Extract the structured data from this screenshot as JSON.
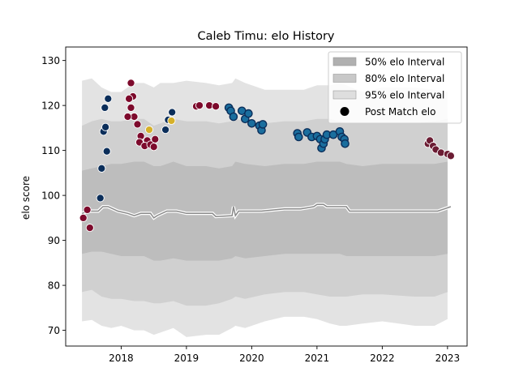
{
  "chart_data": {
    "type": "scatter",
    "title": "Caleb Timu: elo History",
    "xlabel": "",
    "ylabel": "elo score",
    "xlim": [
      2017.15,
      2023.3
    ],
    "ylim": [
      66.5,
      133
    ],
    "x_ticks": [
      2018,
      2019,
      2020,
      2021,
      2022,
      2023
    ],
    "y_ticks": [
      70,
      80,
      90,
      100,
      110,
      120,
      130
    ],
    "grid": false,
    "legend_position": "top-right",
    "legend": [
      {
        "label": "50% elo Interval",
        "color": "#b0b0b0",
        "kind": "patch"
      },
      {
        "label": "80% elo Interval",
        "color": "#c8c8c8",
        "kind": "patch"
      },
      {
        "label": "95% elo Interval",
        "color": "#dedede",
        "kind": "patch"
      },
      {
        "label": "Post Match elo",
        "color": "#000000",
        "kind": "marker"
      }
    ],
    "colors": {
      "band95": "#e3e3e3",
      "band80": "#d0d0d0",
      "band50": "#bdbdbd",
      "line": "#8a8a8a",
      "line_glow": "#ffffff",
      "maroon": "#7d0a2c",
      "navy": "#0b2e5a",
      "gold": "#d6b12a",
      "blue": "#1a6e9e",
      "wine": "#6b1c33"
    },
    "bands": {
      "x": [
        2017.4,
        2017.55,
        2017.7,
        2017.85,
        2018.0,
        2018.2,
        2018.35,
        2018.5,
        2018.6,
        2018.8,
        2019.0,
        2019.3,
        2019.5,
        2019.7,
        2019.75,
        2019.9,
        2020.2,
        2020.5,
        2020.8,
        2021.0,
        2021.2,
        2021.35,
        2021.45,
        2021.7,
        2022.0,
        2022.5,
        2022.8,
        2023.0
      ],
      "lo95": [
        72,
        72.3,
        71,
        70.5,
        71,
        70,
        70,
        69,
        69.5,
        70.5,
        68.5,
        69,
        69,
        70.5,
        71,
        70.5,
        72,
        73,
        73,
        72.5,
        71.5,
        71,
        71,
        71.5,
        72,
        71,
        71,
        72.5
      ],
      "hi95": [
        125.5,
        126,
        124,
        123,
        123,
        125,
        125,
        124,
        125,
        125,
        125.5,
        125,
        124.5,
        125,
        126,
        125,
        123.5,
        123.5,
        123.5,
        124.5,
        124.5,
        125,
        124.5,
        123,
        124,
        124,
        123.5,
        123
      ],
      "lo80": [
        78.5,
        79,
        77.5,
        77,
        77,
        76.5,
        76.5,
        76,
        76,
        76.5,
        75.5,
        75.5,
        76,
        77,
        77.5,
        77,
        78,
        78.5,
        78.5,
        78,
        77.5,
        77.5,
        77.5,
        78,
        78,
        77.5,
        77.5,
        78.5
      ],
      "hi80": [
        115.5,
        116.5,
        117,
        116.5,
        116.5,
        117,
        117,
        115.5,
        116,
        117,
        116.5,
        116.5,
        116,
        116.5,
        117,
        116.5,
        116,
        116.5,
        116.5,
        117,
        117,
        116.5,
        116,
        116,
        116,
        116,
        116.5,
        117
      ],
      "lo50": [
        87,
        87.5,
        87.5,
        87,
        86.5,
        86.5,
        86.5,
        85.5,
        85.5,
        86,
        85.5,
        85.5,
        85.5,
        86,
        86.5,
        86,
        86.5,
        87,
        87,
        87,
        87,
        87,
        86.5,
        86.5,
        86.5,
        86.5,
        86.5,
        87
      ],
      "hi50": [
        105.5,
        106,
        106.5,
        107,
        107,
        107.5,
        107.5,
        106.5,
        106.5,
        107.5,
        106.5,
        106.5,
        106,
        106.5,
        107.5,
        107,
        106.5,
        107,
        107,
        107.5,
        107.5,
        107.5,
        107,
        106.5,
        107,
        107,
        107,
        107.5
      ]
    },
    "mean_line": {
      "x": [
        2017.4,
        2017.5,
        2017.65,
        2017.72,
        2017.8,
        2017.95,
        2018.1,
        2018.2,
        2018.3,
        2018.45,
        2018.5,
        2018.55,
        2018.7,
        2018.85,
        2019.0,
        2019.2,
        2019.4,
        2019.45,
        2019.7,
        2019.72,
        2019.75,
        2019.8,
        2020.0,
        2020.15,
        2020.5,
        2020.75,
        2020.95,
        2021.0,
        2021.1,
        2021.15,
        2021.3,
        2021.45,
        2021.5,
        2022.0,
        2022.5,
        2022.85,
        2022.95,
        2023.05
      ],
      "y": [
        96,
        96.5,
        96.5,
        97.5,
        97.5,
        96.5,
        96,
        95.5,
        96,
        96,
        95,
        95.5,
        96.5,
        96.5,
        96,
        96,
        96,
        95.3,
        95.5,
        97.5,
        95.5,
        96.5,
        96.5,
        96.5,
        97,
        97,
        97.5,
        98,
        98,
        97.5,
        97.5,
        97.5,
        96.5,
        96.5,
        96.5,
        96.5,
        97,
        97.5
      ]
    },
    "series": [
      {
        "color_key": "maroon",
        "points": [
          [
            2017.42,
            95.0
          ],
          [
            2017.48,
            96.8
          ],
          [
            2017.52,
            92.8
          ],
          [
            2018.15,
            125.0
          ],
          [
            2018.18,
            122.0
          ],
          [
            2018.12,
            121.5
          ],
          [
            2018.15,
            119.5
          ],
          [
            2018.2,
            117.5
          ],
          [
            2018.1,
            117.5
          ],
          [
            2018.25,
            115.8
          ],
          [
            2018.3,
            113.2
          ],
          [
            2018.28,
            111.8
          ],
          [
            2018.4,
            112.2
          ],
          [
            2018.36,
            111.0
          ],
          [
            2018.45,
            111.3
          ],
          [
            2018.5,
            110.8
          ],
          [
            2018.52,
            112.5
          ],
          [
            2019.15,
            119.8
          ],
          [
            2019.2,
            120.0
          ],
          [
            2019.35,
            120.0
          ],
          [
            2019.45,
            119.8
          ]
        ]
      },
      {
        "color_key": "navy",
        "points": [
          [
            2017.68,
            99.4
          ],
          [
            2017.7,
            106.0
          ],
          [
            2017.78,
            109.8
          ],
          [
            2017.73,
            114.2
          ],
          [
            2017.76,
            115.2
          ],
          [
            2017.75,
            119.5
          ],
          [
            2017.8,
            121.5
          ],
          [
            2018.68,
            114.6
          ],
          [
            2018.72,
            116.8
          ],
          [
            2018.78,
            118.5
          ]
        ]
      },
      {
        "color_key": "gold",
        "points": [
          [
            2018.43,
            114.6
          ],
          [
            2018.77,
            116.6
          ]
        ]
      },
      {
        "color_key": "blue",
        "points": [
          [
            2019.65,
            119.5
          ],
          [
            2019.68,
            118.8
          ],
          [
            2019.72,
            117.5
          ],
          [
            2019.85,
            118.8
          ],
          [
            2019.9,
            117.0
          ],
          [
            2019.95,
            118.2
          ],
          [
            2020.0,
            116.0
          ],
          [
            2020.12,
            115.5
          ],
          [
            2020.15,
            114.5
          ],
          [
            2020.17,
            115.8
          ],
          [
            2020.7,
            113.8
          ],
          [
            2020.72,
            113.0
          ],
          [
            2020.85,
            114.0
          ],
          [
            2020.92,
            113.0
          ],
          [
            2021.0,
            113.2
          ],
          [
            2021.05,
            112.5
          ],
          [
            2021.07,
            110.5
          ],
          [
            2021.1,
            111.5
          ],
          [
            2021.12,
            112.5
          ],
          [
            2021.15,
            113.5
          ],
          [
            2021.25,
            113.5
          ],
          [
            2021.35,
            114.2
          ],
          [
            2021.38,
            113.0
          ],
          [
            2021.42,
            112.5
          ],
          [
            2021.43,
            111.5
          ]
        ]
      },
      {
        "color_key": "wine",
        "points": [
          [
            2022.7,
            111.5
          ],
          [
            2022.73,
            112.2
          ],
          [
            2022.78,
            111.0
          ],
          [
            2022.82,
            110.2
          ],
          [
            2022.9,
            109.5
          ],
          [
            2023.0,
            109.2
          ],
          [
            2023.05,
            108.8
          ]
        ]
      }
    ]
  }
}
